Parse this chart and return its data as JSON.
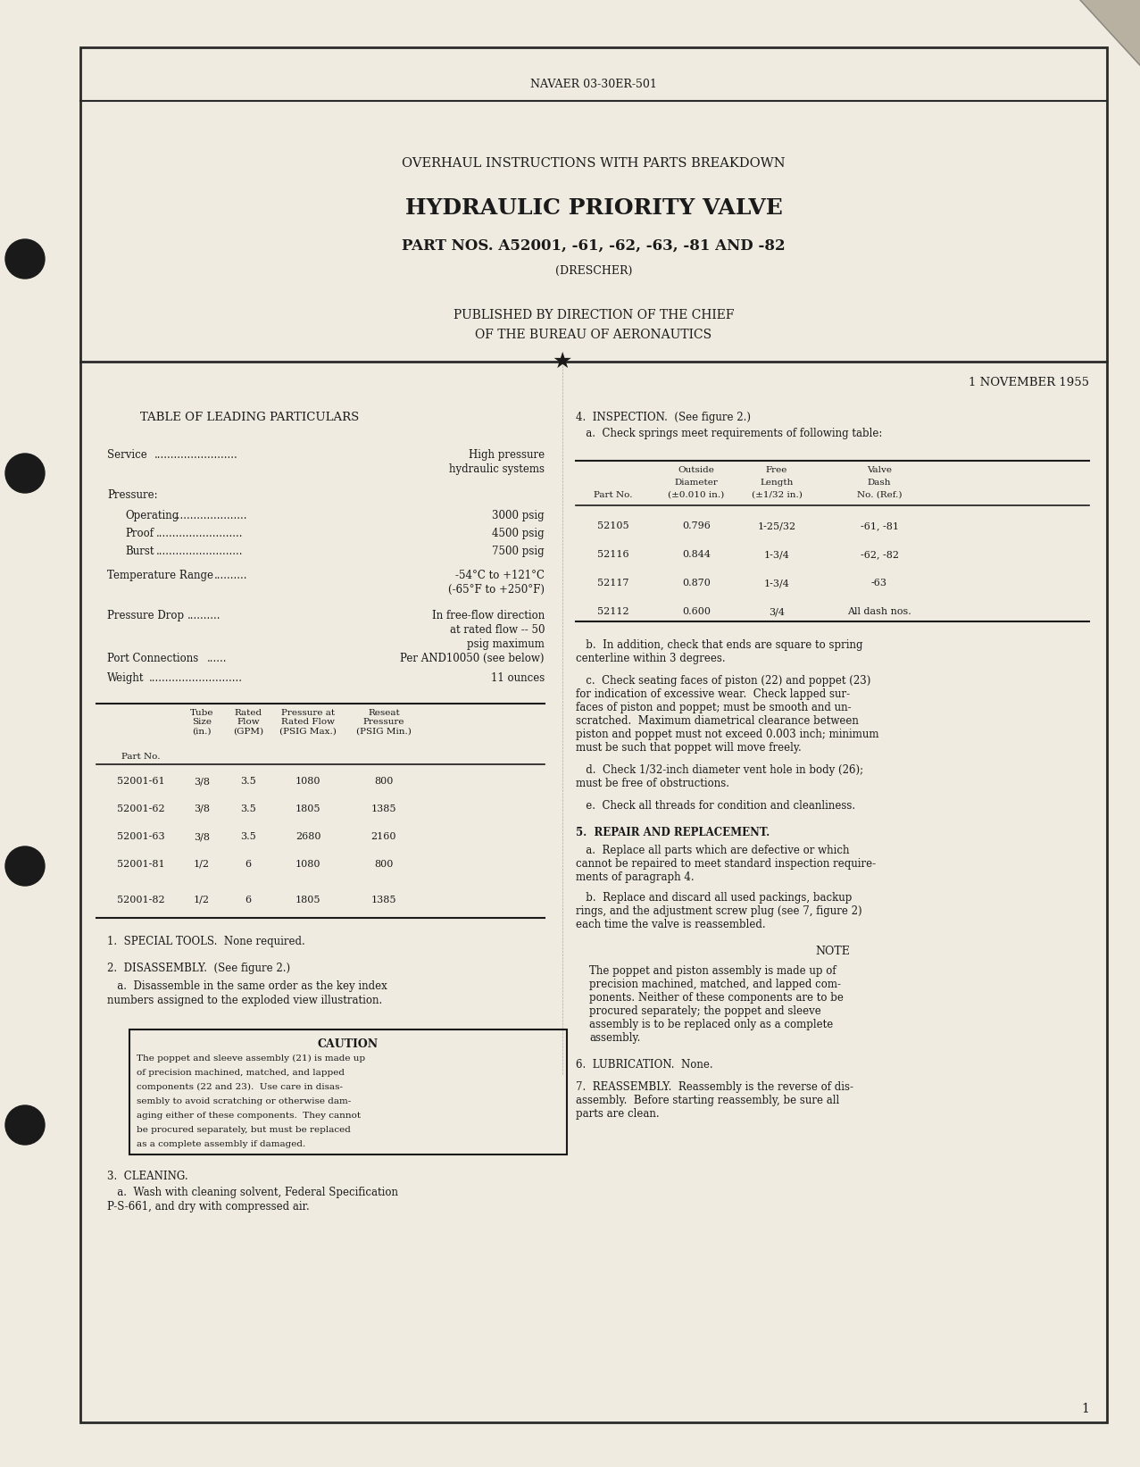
{
  "bg_color": "#f5f0e8",
  "page_bg": "#f0ebe0",
  "header_doc_num": "NAVAER 03-30ER-501",
  "title_line1": "OVERHAUL INSTRUCTIONS WITH PARTS BREAKDOWN",
  "title_line2": "HYDRAULIC PRIORITY VALVE",
  "title_line3": "PART NOS. A52001, -61, -62, -63, -81 AND -82",
  "title_line4": "(DRESCHER)",
  "published_line1": "PUBLISHED BY DIRECTION OF THE CHIEF",
  "published_line2": "OF THE BUREAU OF AERONAUTICS",
  "date_line": "1 NOVEMBER 1955",
  "table1_title": "TABLE OF LEADING PARTICULARS",
  "table1_rows": [
    [
      "Service",
      "High pressure\nhydraulic systems"
    ],
    [
      "Pressure:",
      ""
    ],
    [
      "   Operating",
      "3000 psig"
    ],
    [
      "   Proof",
      "4500 psig"
    ],
    [
      "   Burst",
      "7500 psig"
    ],
    [
      "Temperature Range",
      "-54°C to +121°C\n(-65°F to +250°F)"
    ],
    [
      "Pressure Drop",
      "In free-flow direction\nat rated flow -- 50\npsig maximum"
    ],
    [
      "Port Connections",
      "Per AND10050 (see below)"
    ],
    [
      "Weight",
      "11 ounces"
    ]
  ],
  "table2_headers": [
    "",
    "Tube\nSize\n(in.)",
    "Rated\nFlow\n(GPM)",
    "Pressure at\nRated Flow\n(PSIG Max.)",
    "Reseat\nPressure\n(PSIG Min.)"
  ],
  "table2_label": "Part No.",
  "table2_rows": [
    [
      "52001-61",
      "3/8",
      "3.5",
      "1080",
      "800"
    ],
    [
      "52001-62",
      "3/8",
      "3.5",
      "1805",
      "1385"
    ],
    [
      "52001-63",
      "3/8",
      "3.5",
      "2680",
      "2160"
    ],
    [
      "52001-81",
      "1/2",
      "6",
      "1080",
      "800"
    ],
    [
      "52001-82",
      "1/2",
      "6",
      "1805",
      "1385"
    ]
  ],
  "section1": "1.  SPECIAL TOOLS.  None required.",
  "section2_title": "2.  DISASSEMBLY.  (See figure 2.)",
  "section2a": "   a.  Disassemble in the same order as the key index\nnumbers assigned to the exploded view illustration.",
  "caution_title": "CAUTION",
  "caution_text": "The poppet and sleeve assembly (21) is made up\nof precision machined, matched, and lapped\ncomponents (22 and 23).  Use care in disas-\nsembly to avoid scratching or otherwise dam-\naging either of these components.  They cannot\nbe procured separately, but must be replaced\nas a complete assembly if damaged.",
  "section3_title": "3.  CLEANING.",
  "section3a": "   a.  Wash with cleaning solvent, Federal Specification\nP-S-661, and dry with compressed air.",
  "section4_title": "4.  INSPECTION.  (See figure 2.)",
  "section4a": "   a.  Check springs meet requirements of following table:",
  "spring_table_headers": [
    "Part No.",
    "Outside\nDiameter\n(±0.010 in.)",
    "Free\nLength\n(±1/32 in.)",
    "Valve\nDash\nNo. (Ref.)"
  ],
  "spring_table_rows": [
    [
      "52105",
      "0.796",
      "1-25/32",
      "-61, -81"
    ],
    [
      "52116",
      "0.844",
      "1-3/4",
      "-62, -82"
    ],
    [
      "52117",
      "0.870",
      "1-3/4",
      "-63"
    ],
    [
      "52112",
      "0.600",
      "3/4",
      "All dash nos."
    ]
  ],
  "section4b": "   b.  In addition, check that ends are square to spring\ncenterline within 3 degrees.",
  "section4c": "   c.  Check seating faces of piston (22) and poppet (23)\nfor indication of excessive wear.  Check lapped sur-\nfaces of piston and poppet; must be smooth and un-\nscratched.  Maximum diametrical clearance between\npiston and poppet must not exceed 0.003 inch; minimum\nmust be such that poppet will move freely.",
  "section4d": "   d.  Check 1/32-inch diameter vent hole in body (26);\nmust be free of obstructions.",
  "section4e": "   e.  Check all threads for condition and cleanliness.",
  "section5_title": "5.  REPAIR AND REPLACEMENT.",
  "section5a": "   a.  Replace all parts which are defective or which\ncannot be repaired to meet standard inspection require-\nments of paragraph 4.",
  "section5b": "   b.  Replace and discard all used packings, backup\nrings, and the adjustment screw plug (see 7, figure 2)\neach time the valve is reassembled.",
  "note_title": "NOTE",
  "note_text": "The poppet and piston assembly is made up of\nprecision machined, matched, and lapped com-\nponents. Neither of these components are to be\nprocured separately; the poppet and sleeve\nassembly is to be replaced only as a complete\nassembly.",
  "section6": "6.  LUBRICATION.  None.",
  "section7": "7.  REASSEMBLY.  Reassembly is the reverse of dis-\nassembly.  Before starting reassembly, be sure all\nparts are clean.",
  "page_num": "1"
}
